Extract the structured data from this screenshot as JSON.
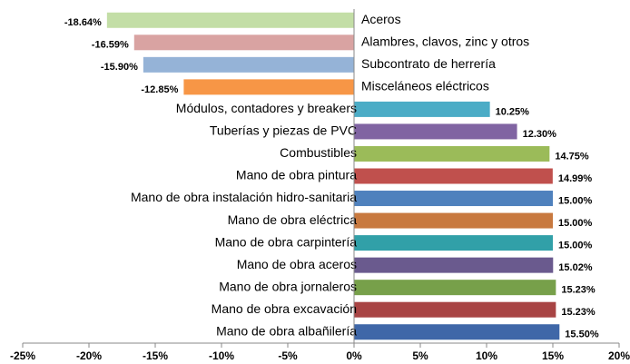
{
  "chart_data": {
    "type": "hbar",
    "categories": [
      "Aceros",
      "Alambres, clavos, zinc y otros",
      "Subcontrato de herrería",
      "Misceláneos eléctricos",
      "Módulos, contadores y breakers",
      "Tuberías y piezas de PVC",
      "Combustibles",
      "Mano de obra pintura",
      "Mano de obra instalación hidro-sanitaria",
      "Mano de obra eléctrica",
      "Mano de obra carpintería",
      "Mano de obra aceros",
      "Mano de obra jornaleros",
      "Mano de obra excavación",
      "Mano de obra albañilería"
    ],
    "values": [
      -18.64,
      -16.59,
      -15.9,
      -12.85,
      10.25,
      12.3,
      14.75,
      14.99,
      15.0,
      15.0,
      15.0,
      15.02,
      15.23,
      15.23,
      15.5
    ],
    "value_labels": [
      "-18.64%",
      "-16.59%",
      "-15.90%",
      "-12.85%",
      "10.25%",
      "12.30%",
      "14.75%",
      "14.99%",
      "15.00%",
      "15.00%",
      "15.00%",
      "15.02%",
      "15.23%",
      "15.23%",
      "15.50%"
    ],
    "colors": [
      "#c3dea6",
      "#d9a3a2",
      "#95b3d7",
      "#f79646",
      "#4bacc6",
      "#8064a2",
      "#9bbb59",
      "#c0504d",
      "#4f81bd",
      "#c8793f",
      "#31a0a8",
      "#6a5a8e",
      "#77a04a",
      "#a84444",
      "#3f67a8"
    ],
    "xlim": [
      -25,
      20
    ],
    "xticks": [
      {
        "value": -25,
        "label": "-25%"
      },
      {
        "value": -20,
        "label": "-20%"
      },
      {
        "value": -15,
        "label": "-15%"
      },
      {
        "value": -10,
        "label": "-10%"
      },
      {
        "value": -5,
        "label": "-5%"
      },
      {
        "value": 0,
        "label": "0%"
      },
      {
        "value": 5,
        "label": "5%"
      },
      {
        "value": 10,
        "label": "10%"
      },
      {
        "value": 15,
        "label": "15%"
      },
      {
        "value": 20,
        "label": "20%"
      }
    ]
  }
}
